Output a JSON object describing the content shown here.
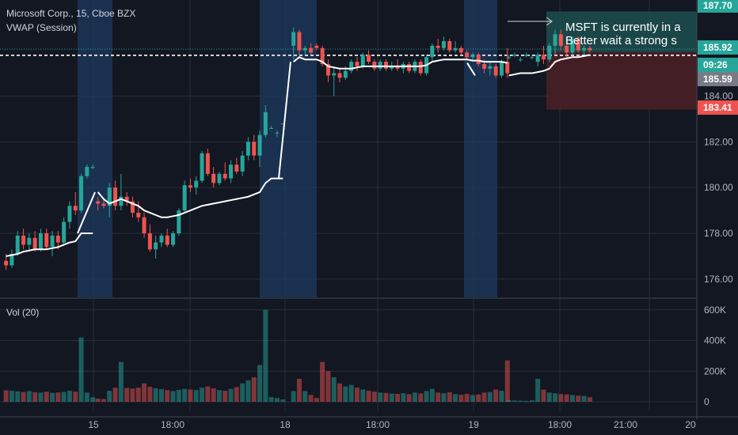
{
  "header": {
    "title": "Microsoft Corp., 15, Cboe BZX",
    "indicator": "VWAP (Session)",
    "volume_label": "Vol (20)"
  },
  "annotation": {
    "line1": "MSFT is currently in a",
    "line2": "Better wait a strong s"
  },
  "colors": {
    "background": "#131722",
    "up": "#26a69a",
    "down": "#ef5350",
    "vwap": "#ffffff",
    "session_band": "#1e3a5f",
    "target_zone": "#1d4f4f",
    "stop_zone": "#4a1f26"
  },
  "price_badges": [
    {
      "label": "187.70",
      "color": "#26a69a"
    },
    {
      "label": "185.92",
      "color": "#26a69a"
    },
    {
      "label": "09:26",
      "color": "#26a69a"
    },
    {
      "label": "185.59",
      "color": "#787b86"
    },
    {
      "label": "183.41",
      "color": "#ef5350"
    }
  ],
  "chart_data": {
    "type": "candlestick",
    "price_axis": {
      "range": [
        175.2,
        188.2
      ],
      "ticks": [
        "176.00",
        "178.00",
        "180.00",
        "182.00",
        "184.00"
      ]
    },
    "volume_axis": {
      "range": [
        0,
        640000
      ],
      "ticks": [
        "0",
        "200K",
        "400K",
        "600K"
      ]
    },
    "time_axis": {
      "ticks": [
        "15",
        "18:00",
        "18",
        "18:00",
        "19",
        "18:00",
        "21:00",
        "20"
      ]
    },
    "horizontal_lines": {
      "dashed_price": 185.92,
      "dotted_price": 186.05
    },
    "risk_reward": {
      "entry": 185.92,
      "target": 187.7,
      "stop": 183.41
    },
    "sessions": [
      {
        "candles": [
          {
            "o": 176.8,
            "h": 177.1,
            "l": 176.4,
            "c": 176.6,
            "v": 75000
          },
          {
            "o": 176.6,
            "h": 177.3,
            "l": 176.5,
            "c": 177.1,
            "v": 72000
          },
          {
            "o": 177.1,
            "h": 178.1,
            "l": 177.0,
            "c": 177.9,
            "v": 68000
          },
          {
            "o": 177.9,
            "h": 178.2,
            "l": 177.3,
            "c": 177.5,
            "v": 64000
          },
          {
            "o": 177.5,
            "h": 178.0,
            "l": 177.2,
            "c": 177.8,
            "v": 70000
          },
          {
            "o": 177.8,
            "h": 178.1,
            "l": 177.2,
            "c": 177.3,
            "v": 62000
          },
          {
            "o": 177.3,
            "h": 178.2,
            "l": 177.2,
            "c": 178.0,
            "v": 60000
          },
          {
            "o": 178.0,
            "h": 178.2,
            "l": 177.3,
            "c": 177.4,
            "v": 66000
          },
          {
            "o": 177.4,
            "h": 178.1,
            "l": 177.0,
            "c": 177.9,
            "v": 58000
          },
          {
            "o": 177.9,
            "h": 178.1,
            "l": 177.3,
            "c": 177.6,
            "v": 61000
          },
          {
            "o": 177.6,
            "h": 178.7,
            "l": 177.5,
            "c": 178.5,
            "v": 64000
          },
          {
            "o": 178.5,
            "h": 179.4,
            "l": 178.2,
            "c": 179.2,
            "v": 72000
          },
          {
            "o": 179.2,
            "h": 179.8,
            "l": 178.8,
            "c": 179.0,
            "v": 66000
          },
          {
            "o": 179.0,
            "h": 180.6,
            "l": 178.9,
            "c": 180.5,
            "v": 420000
          },
          {
            "o": 180.5,
            "h": 181.0,
            "l": 180.4,
            "c": 180.9,
            "v": 60000
          },
          {
            "o": 180.9,
            "h": 181.0,
            "l": 180.8,
            "c": 180.9,
            "v": 30000
          }
        ]
      },
      {
        "candles": [
          {
            "o": 179.4,
            "h": 179.6,
            "l": 179.0,
            "c": 179.3,
            "v": 20000
          },
          {
            "o": 179.3,
            "h": 179.5,
            "l": 179.1,
            "c": 179.2,
            "v": 18000
          },
          {
            "o": 179.2,
            "h": 180.2,
            "l": 178.7,
            "c": 180.0,
            "v": 72000
          },
          {
            "o": 180.0,
            "h": 180.3,
            "l": 179.0,
            "c": 179.2,
            "v": 92000
          },
          {
            "o": 179.2,
            "h": 180.6,
            "l": 179.0,
            "c": 179.6,
            "v": 260000
          },
          {
            "o": 179.6,
            "h": 179.8,
            "l": 179.2,
            "c": 179.4,
            "v": 90000
          },
          {
            "o": 179.4,
            "h": 179.6,
            "l": 178.7,
            "c": 178.9,
            "v": 86000
          },
          {
            "o": 178.9,
            "h": 179.4,
            "l": 178.5,
            "c": 178.7,
            "v": 92000
          },
          {
            "o": 178.7,
            "h": 178.9,
            "l": 177.8,
            "c": 178.0,
            "v": 120000
          },
          {
            "o": 178.0,
            "h": 178.4,
            "l": 177.2,
            "c": 177.3,
            "v": 98000
          },
          {
            "o": 177.3,
            "h": 177.9,
            "l": 176.9,
            "c": 177.6,
            "v": 88000
          },
          {
            "o": 177.6,
            "h": 178.0,
            "l": 177.4,
            "c": 177.9,
            "v": 82000
          },
          {
            "o": 177.9,
            "h": 178.2,
            "l": 177.4,
            "c": 177.5,
            "v": 76000
          },
          {
            "o": 177.5,
            "h": 178.1,
            "l": 177.4,
            "c": 178.0,
            "v": 70000
          },
          {
            "o": 178.0,
            "h": 179.1,
            "l": 177.9,
            "c": 179.0,
            "v": 78000
          },
          {
            "o": 179.0,
            "h": 180.3,
            "l": 178.9,
            "c": 180.1,
            "v": 84000
          },
          {
            "o": 180.1,
            "h": 180.4,
            "l": 179.8,
            "c": 180.0,
            "v": 80000
          },
          {
            "o": 180.0,
            "h": 180.5,
            "l": 179.7,
            "c": 180.3,
            "v": 76000
          },
          {
            "o": 180.3,
            "h": 181.6,
            "l": 180.2,
            "c": 181.5,
            "v": 92000
          },
          {
            "o": 181.5,
            "h": 181.7,
            "l": 180.5,
            "c": 180.6,
            "v": 100000
          },
          {
            "o": 180.6,
            "h": 180.9,
            "l": 180.0,
            "c": 180.2,
            "v": 88000
          },
          {
            "o": 180.2,
            "h": 180.7,
            "l": 180.1,
            "c": 180.6,
            "v": 76000
          },
          {
            "o": 180.6,
            "h": 181.1,
            "l": 180.3,
            "c": 180.4,
            "v": 72000
          },
          {
            "o": 180.4,
            "h": 181.2,
            "l": 180.2,
            "c": 181.0,
            "v": 84000
          },
          {
            "o": 181.0,
            "h": 181.3,
            "l": 180.6,
            "c": 180.7,
            "v": 96000
          },
          {
            "o": 180.7,
            "h": 181.6,
            "l": 180.5,
            "c": 181.4,
            "v": 120000
          },
          {
            "o": 181.4,
            "h": 182.2,
            "l": 181.2,
            "c": 182.0,
            "v": 140000
          },
          {
            "o": 182.0,
            "h": 182.3,
            "l": 181.2,
            "c": 181.4,
            "v": 160000
          },
          {
            "o": 181.4,
            "h": 182.5,
            "l": 180.9,
            "c": 182.3,
            "v": 240000
          },
          {
            "o": 182.3,
            "h": 183.6,
            "l": 182.2,
            "c": 183.3,
            "v": 600000
          },
          {
            "o": 182.6,
            "h": 182.7,
            "l": 182.6,
            "c": 182.6,
            "v": 30000
          },
          {
            "o": 182.4,
            "h": 182.5,
            "l": 182.2,
            "c": 182.4,
            "v": 25000
          },
          {
            "o": 182.8,
            "h": 182.8,
            "l": 182.8,
            "c": 182.8,
            "v": 15000
          }
        ]
      },
      {
        "candles": [
          {
            "o": 186.2,
            "h": 187.0,
            "l": 185.6,
            "c": 186.8,
            "v": 70000
          },
          {
            "o": 186.8,
            "h": 186.9,
            "l": 185.8,
            "c": 186.0,
            "v": 150000
          },
          {
            "o": 186.0,
            "h": 186.2,
            "l": 185.8,
            "c": 186.1,
            "v": 70000
          },
          {
            "o": 186.1,
            "h": 186.3,
            "l": 185.8,
            "c": 185.9,
            "v": 45000
          },
          {
            "o": 186.2,
            "h": 186.3,
            "l": 186.0,
            "c": 186.1,
            "v": 25000
          },
          {
            "o": 186.1,
            "h": 186.2,
            "l": 185.3,
            "c": 185.4,
            "v": 260000
          },
          {
            "o": 185.4,
            "h": 185.6,
            "l": 184.6,
            "c": 184.9,
            "v": 200000
          },
          {
            "o": 184.9,
            "h": 185.3,
            "l": 184.0,
            "c": 185.0,
            "v": 160000
          },
          {
            "o": 185.0,
            "h": 185.2,
            "l": 184.6,
            "c": 184.8,
            "v": 120000
          },
          {
            "o": 184.8,
            "h": 185.3,
            "l": 184.7,
            "c": 185.1,
            "v": 100000
          },
          {
            "o": 185.1,
            "h": 185.6,
            "l": 185.0,
            "c": 185.5,
            "v": 110000
          },
          {
            "o": 185.5,
            "h": 185.7,
            "l": 185.1,
            "c": 185.3,
            "v": 92000
          },
          {
            "o": 185.3,
            "h": 185.9,
            "l": 185.2,
            "c": 185.8,
            "v": 80000
          },
          {
            "o": 185.8,
            "h": 186.0,
            "l": 185.4,
            "c": 185.5,
            "v": 72000
          },
          {
            "o": 185.5,
            "h": 185.6,
            "l": 185.1,
            "c": 185.2,
            "v": 66000
          },
          {
            "o": 185.2,
            "h": 185.6,
            "l": 185.1,
            "c": 185.5,
            "v": 60000
          },
          {
            "o": 185.5,
            "h": 185.6,
            "l": 185.1,
            "c": 185.2,
            "v": 58000
          },
          {
            "o": 185.2,
            "h": 185.5,
            "l": 185.1,
            "c": 185.3,
            "v": 54000
          },
          {
            "o": 185.3,
            "h": 185.6,
            "l": 185.1,
            "c": 185.2,
            "v": 52000
          },
          {
            "o": 185.2,
            "h": 185.5,
            "l": 185.0,
            "c": 185.4,
            "v": 56000
          },
          {
            "o": 185.4,
            "h": 185.5,
            "l": 185.0,
            "c": 185.1,
            "v": 50000
          },
          {
            "o": 185.1,
            "h": 185.6,
            "l": 185.0,
            "c": 185.5,
            "v": 60000
          },
          {
            "o": 185.5,
            "h": 185.6,
            "l": 184.9,
            "c": 185.0,
            "v": 54000
          },
          {
            "o": 185.0,
            "h": 185.8,
            "l": 184.9,
            "c": 185.7,
            "v": 70000
          },
          {
            "o": 185.7,
            "h": 186.3,
            "l": 185.5,
            "c": 186.2,
            "v": 84000
          },
          {
            "o": 186.2,
            "h": 186.5,
            "l": 185.9,
            "c": 186.1,
            "v": 60000
          },
          {
            "o": 186.1,
            "h": 186.6,
            "l": 186.0,
            "c": 186.4,
            "v": 56000
          },
          {
            "o": 186.4,
            "h": 186.5,
            "l": 185.9,
            "c": 186.0,
            "v": 62000
          },
          {
            "o": 186.0,
            "h": 186.4,
            "l": 185.9,
            "c": 186.1,
            "v": 50000
          },
          {
            "o": 186.1,
            "h": 186.2,
            "l": 185.8,
            "c": 185.9,
            "v": 46000
          },
          {
            "o": 185.9,
            "h": 186.0,
            "l": 185.6,
            "c": 185.7,
            "v": 52000
          },
          {
            "o": 185.7,
            "h": 185.9,
            "l": 185.5,
            "c": 185.8,
            "v": 44000
          },
          {
            "o": 185.8,
            "h": 185.9,
            "l": 185.3,
            "c": 185.4,
            "v": 48000
          },
          {
            "o": 185.4,
            "h": 185.6,
            "l": 185.0,
            "c": 185.2,
            "v": 60000
          },
          {
            "o": 185.2,
            "h": 185.5,
            "l": 184.9,
            "c": 185.3,
            "v": 64000
          },
          {
            "o": 185.3,
            "h": 185.4,
            "l": 184.8,
            "c": 184.9,
            "v": 80000
          },
          {
            "o": 184.9,
            "h": 185.6,
            "l": 184.8,
            "c": 185.5,
            "v": 72000
          },
          {
            "o": 185.5,
            "h": 186.1,
            "l": 184.8,
            "c": 185.0,
            "v": 270000
          }
        ]
      },
      {
        "candles": [
          {
            "o": 185.7,
            "h": 185.8,
            "l": 185.6,
            "c": 185.7,
            "v": 10000
          },
          {
            "o": 185.8,
            "h": 185.9,
            "l": 185.7,
            "c": 185.8,
            "v": 8000
          },
          {
            "o": 185.6,
            "h": 185.7,
            "l": 185.5,
            "c": 185.6,
            "v": 7000
          },
          {
            "o": 185.8,
            "h": 185.9,
            "l": 185.7,
            "c": 185.8,
            "v": 6000
          },
          {
            "o": 185.7,
            "h": 185.8,
            "l": 185.6,
            "c": 185.7,
            "v": 9000
          },
          {
            "o": 185.5,
            "h": 185.9,
            "l": 185.3,
            "c": 185.8,
            "v": 150000
          },
          {
            "o": 185.8,
            "h": 186.2,
            "l": 185.4,
            "c": 185.6,
            "v": 80000
          },
          {
            "o": 185.6,
            "h": 186.3,
            "l": 185.5,
            "c": 186.2,
            "v": 60000
          },
          {
            "o": 186.2,
            "h": 186.9,
            "l": 185.8,
            "c": 186.7,
            "v": 55000
          },
          {
            "o": 186.7,
            "h": 186.9,
            "l": 186.0,
            "c": 186.2,
            "v": 50000
          },
          {
            "o": 186.2,
            "h": 186.6,
            "l": 185.7,
            "c": 185.9,
            "v": 48000
          },
          {
            "o": 185.9,
            "h": 186.6,
            "l": 185.8,
            "c": 186.5,
            "v": 44000
          },
          {
            "o": 186.5,
            "h": 186.6,
            "l": 185.9,
            "c": 186.0,
            "v": 40000
          },
          {
            "o": 186.0,
            "h": 186.2,
            "l": 185.8,
            "c": 186.1,
            "v": 38000
          },
          {
            "o": 186.1,
            "h": 186.2,
            "l": 185.9,
            "c": 186.0,
            "v": 30000
          }
        ]
      }
    ],
    "vwap": [
      [
        177.0,
        177.05,
        177.1,
        177.2,
        177.25,
        177.3,
        177.3,
        177.3,
        177.35,
        177.4,
        177.5,
        177.6,
        177.65,
        178.0,
        178.0,
        178.0
      ],
      [
        179.8,
        179.5,
        179.3,
        179.4,
        179.5,
        179.4,
        179.3,
        179.2,
        179.0,
        178.9,
        178.8,
        178.7,
        178.7,
        178.75,
        178.8,
        178.9,
        179.0,
        179.1,
        179.2,
        179.25,
        179.3,
        179.35,
        179.4,
        179.45,
        179.5,
        179.55,
        179.6,
        179.7,
        179.8,
        180.2,
        180.4,
        180.4,
        180.4
      ],
      [
        185.5,
        185.7,
        185.6,
        185.6,
        185.6,
        185.5,
        185.3,
        185.25,
        185.2,
        185.2,
        185.2,
        185.25,
        185.3,
        185.3,
        185.3,
        185.3,
        185.3,
        185.3,
        185.3,
        185.3,
        185.3,
        185.3,
        185.3,
        185.35,
        185.5,
        185.55,
        185.6,
        185.6,
        185.6,
        185.6,
        185.6,
        185.55,
        185.55,
        185.5,
        185.5,
        185.5,
        185.5,
        185.45
      ],
      [
        184.9,
        184.95,
        185.0,
        185.0,
        185.0,
        185.05,
        185.1,
        185.2,
        185.5,
        185.6,
        185.65,
        185.7,
        185.7,
        185.75,
        185.8
      ]
    ]
  }
}
